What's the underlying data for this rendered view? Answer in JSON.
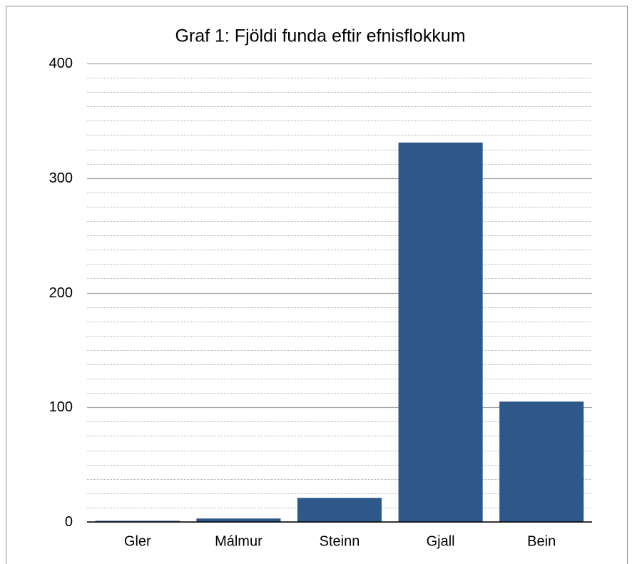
{
  "chart_data": {
    "type": "bar",
    "title": "Graf 1: Fjöldi funda eftir efnisflokkum",
    "categories": [
      "Gler",
      "Málmur",
      "Steinn",
      "Gjall",
      "Bein"
    ],
    "values": [
      1,
      3,
      21,
      331,
      105
    ],
    "color": "#2e578a",
    "ylim": [
      0,
      400
    ],
    "yticks": [
      0,
      100,
      200,
      300,
      400
    ],
    "minor_yticks": [
      12.5,
      25,
      37.5,
      50,
      62.5,
      75,
      87.5,
      112.5,
      125,
      137.5,
      150,
      162.5,
      175,
      187.5,
      212.5,
      225,
      237.5,
      250,
      262.5,
      275,
      287.5,
      312.5,
      325,
      337.5,
      350,
      362.5,
      375,
      387.5
    ],
    "grid": true
  }
}
